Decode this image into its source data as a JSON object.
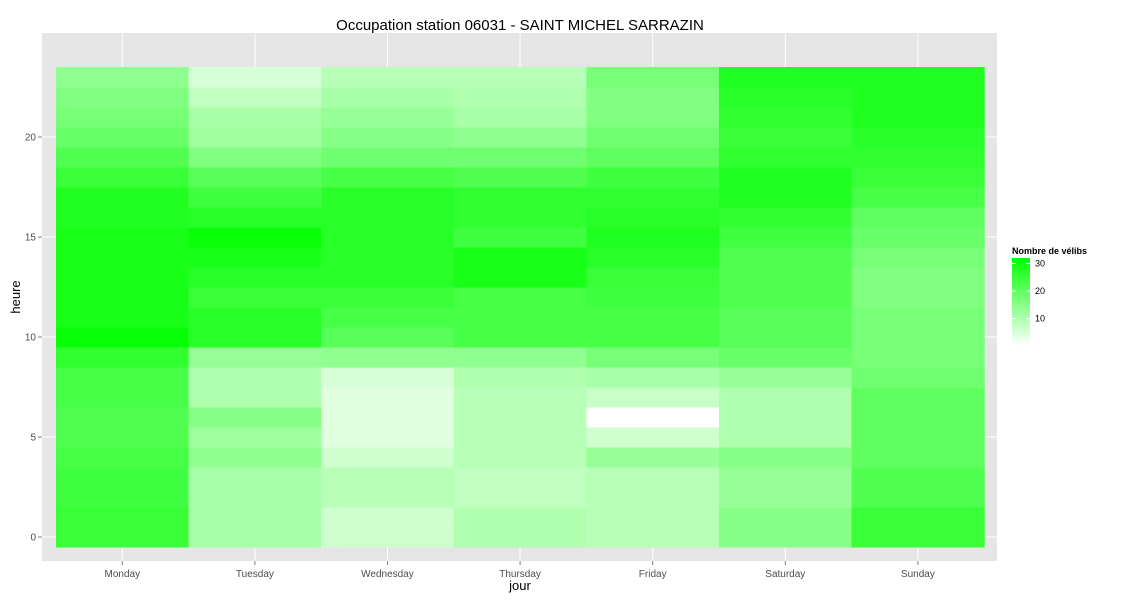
{
  "chart_data": {
    "type": "heatmap",
    "title": "Occupation station 06031 - SAINT MICHEL SARRAZIN",
    "xlabel": "jour",
    "ylabel": "heure",
    "x_categories": [
      "Monday",
      "Tuesday",
      "Wednesday",
      "Thursday",
      "Friday",
      "Saturday",
      "Sunday"
    ],
    "y_hours": [
      0,
      1,
      2,
      3,
      4,
      5,
      6,
      7,
      8,
      9,
      10,
      11,
      12,
      13,
      14,
      15,
      16,
      17,
      18,
      19,
      20,
      21,
      22,
      23
    ],
    "y_ticks": [
      0,
      5,
      10,
      15,
      20
    ],
    "ylim": [
      -0.5,
      23.5
    ],
    "values_by_day": {
      "Monday": [
        25,
        25,
        24,
        24,
        23,
        22,
        22,
        23,
        23,
        26,
        31,
        29,
        29,
        29,
        29,
        29,
        28,
        28,
        25,
        22,
        19,
        17,
        16,
        14
      ],
      "Tuesday": [
        11,
        11,
        11,
        11,
        14,
        12,
        15,
        10,
        10,
        13,
        27,
        27,
        25,
        27,
        29,
        31,
        27,
        24,
        21,
        16,
        12,
        11,
        8,
        5
      ],
      "Wednesday": [
        6,
        6,
        9,
        9,
        6,
        4,
        4,
        4,
        5,
        14,
        21,
        23,
        25,
        27,
        27,
        27,
        27,
        27,
        23,
        18,
        15,
        13,
        11,
        9
      ],
      "Thursday": [
        10,
        10,
        8,
        8,
        9,
        9,
        9,
        9,
        10,
        14,
        23,
        23,
        23,
        29,
        29,
        24,
        26,
        26,
        22,
        18,
        14,
        11,
        10,
        9
      ],
      "Friday": [
        9,
        9,
        9,
        9,
        13,
        6,
        0,
        7,
        11,
        17,
        23,
        23,
        24,
        25,
        27,
        28,
        27,
        26,
        24,
        20,
        18,
        16,
        16,
        17
      ],
      "Saturday": [
        15,
        15,
        13,
        13,
        15,
        10,
        10,
        10,
        13,
        19,
        21,
        21,
        22,
        22,
        22,
        24,
        26,
        28,
        28,
        26,
        25,
        26,
        27,
        28
      ],
      "Sunday": [
        25,
        25,
        22,
        22,
        20,
        20,
        20,
        20,
        18,
        17,
        17,
        17,
        16,
        16,
        17,
        19,
        20,
        23,
        25,
        26,
        27,
        28,
        28,
        28
      ]
    },
    "fill_scale": {
      "title": "Nombre de vélibs",
      "ticks": [
        10,
        20,
        30
      ],
      "low_color": "#ffffff",
      "high_color": "#00ff00",
      "min": 0,
      "max": 32
    },
    "legend_position": "right",
    "panel_background": "#e5e5e5",
    "grid": true
  }
}
